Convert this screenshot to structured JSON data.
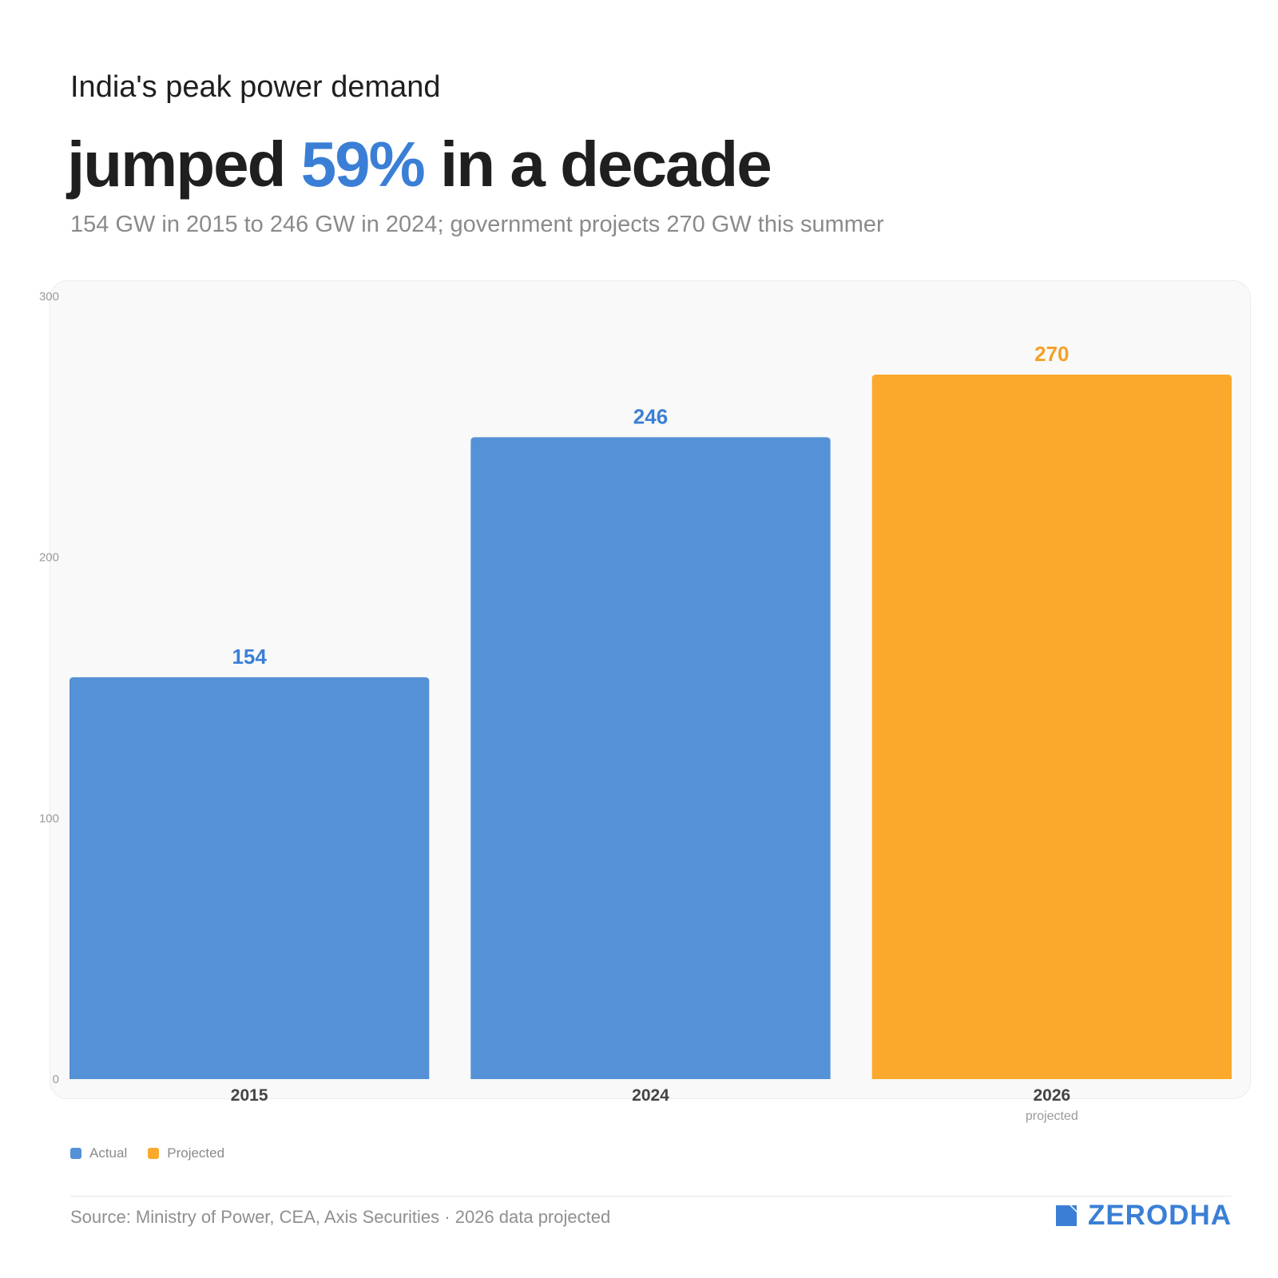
{
  "header": {
    "kicker": "India's peak power demand",
    "headline_pre": "jumped ",
    "headline_accent": "59%",
    "headline_post": " in a decade",
    "subtitle": "154 GW in 2015 to 246 GW in 2024; government projects 270 GW this summer"
  },
  "colors": {
    "actual": "#5591d6",
    "projected": "#fba92c",
    "actual_label": "#3a7fd5",
    "projected_label": "#f5a027",
    "brand": "#3a7fd5"
  },
  "chart_data": {
    "type": "bar",
    "categories": [
      "2015",
      "2024",
      "2026"
    ],
    "category_notes": [
      "",
      "",
      "projected"
    ],
    "values": [
      154,
      246,
      270
    ],
    "series_kind": [
      "actual",
      "actual",
      "projected"
    ],
    "yticks": [
      0,
      100,
      200,
      300
    ],
    "ylim": [
      0,
      300
    ],
    "title": "",
    "xlabel": "",
    "ylabel": "",
    "grid": false,
    "legend_position": "bottom-left"
  },
  "legend": {
    "actual": "Actual",
    "projected": "Projected"
  },
  "footer": {
    "source": "Source: Ministry of Power, CEA, Axis Securities · 2026 data projected",
    "brand": "ZERODHA"
  }
}
